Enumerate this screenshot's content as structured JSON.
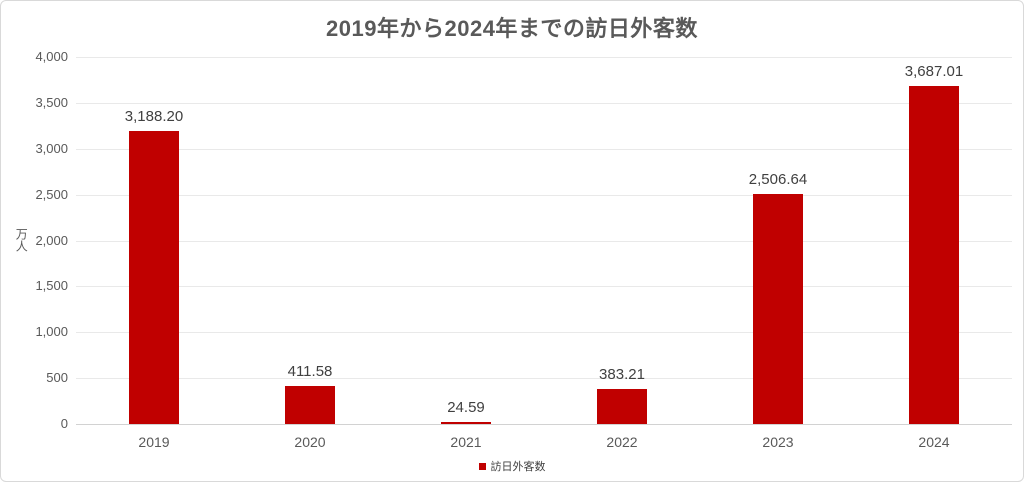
{
  "chart_data": {
    "type": "bar",
    "title": "2019年から2024年までの訪日外客数",
    "categories": [
      "2019",
      "2020",
      "2021",
      "2022",
      "2023",
      "2024"
    ],
    "series": [
      {
        "name": "訪日外客数",
        "values": [
          3188.2,
          411.58,
          24.59,
          383.21,
          2506.64,
          3687.01
        ],
        "color": "#C00000"
      }
    ],
    "value_labels": [
      "3,188.20",
      "411.58",
      "24.59",
      "383.21",
      "2,506.64",
      "3,687.01"
    ],
    "xlabel": "",
    "ylabel": "万人",
    "ylim": [
      0,
      4000
    ],
    "ytick_step": 500,
    "yticks": [
      "0",
      "500",
      "1,000",
      "1,500",
      "2,000",
      "2,500",
      "3,000",
      "3,500",
      "4,000"
    ],
    "grid": true,
    "legend_position": "bottom"
  }
}
